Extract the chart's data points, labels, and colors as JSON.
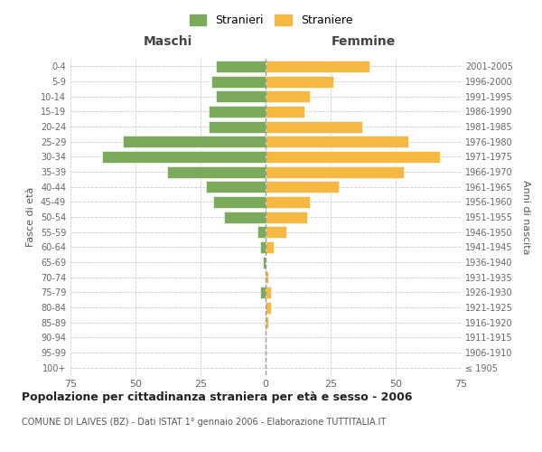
{
  "age_groups": [
    "100+",
    "95-99",
    "90-94",
    "85-89",
    "80-84",
    "75-79",
    "70-74",
    "65-69",
    "60-64",
    "55-59",
    "50-54",
    "45-49",
    "40-44",
    "35-39",
    "30-34",
    "25-29",
    "20-24",
    "15-19",
    "10-14",
    "5-9",
    "0-4"
  ],
  "birth_years": [
    "≤ 1905",
    "1906-1910",
    "1911-1915",
    "1916-1920",
    "1921-1925",
    "1926-1930",
    "1931-1935",
    "1936-1940",
    "1941-1945",
    "1946-1950",
    "1951-1955",
    "1956-1960",
    "1961-1965",
    "1966-1970",
    "1971-1975",
    "1976-1980",
    "1981-1985",
    "1986-1990",
    "1991-1995",
    "1996-2000",
    "2001-2005"
  ],
  "maschi": [
    0,
    0,
    0,
    0,
    0,
    2,
    0,
    1,
    2,
    3,
    16,
    20,
    23,
    38,
    63,
    55,
    22,
    22,
    19,
    21,
    19
  ],
  "femmine": [
    0,
    0,
    0,
    1,
    2,
    2,
    1,
    0,
    3,
    8,
    16,
    17,
    28,
    53,
    67,
    55,
    37,
    15,
    17,
    26,
    40
  ],
  "color_maschi": "#7aaa5a",
  "color_femmine": "#f5b942",
  "title": "Popolazione per cittadinanza straniera per età e sesso - 2006",
  "subtitle": "COMUNE DI LAIVES (BZ) - Dati ISTAT 1° gennaio 2006 - Elaborazione TUTTITALIA.IT",
  "xlabel_left": "Maschi",
  "xlabel_right": "Femmine",
  "ylabel_left": "Fasce di età",
  "ylabel_right": "Anni di nascita",
  "legend_maschi": "Stranieri",
  "legend_femmine": "Straniere",
  "xlim": 75,
  "background_color": "#ffffff",
  "grid_color": "#cccccc"
}
